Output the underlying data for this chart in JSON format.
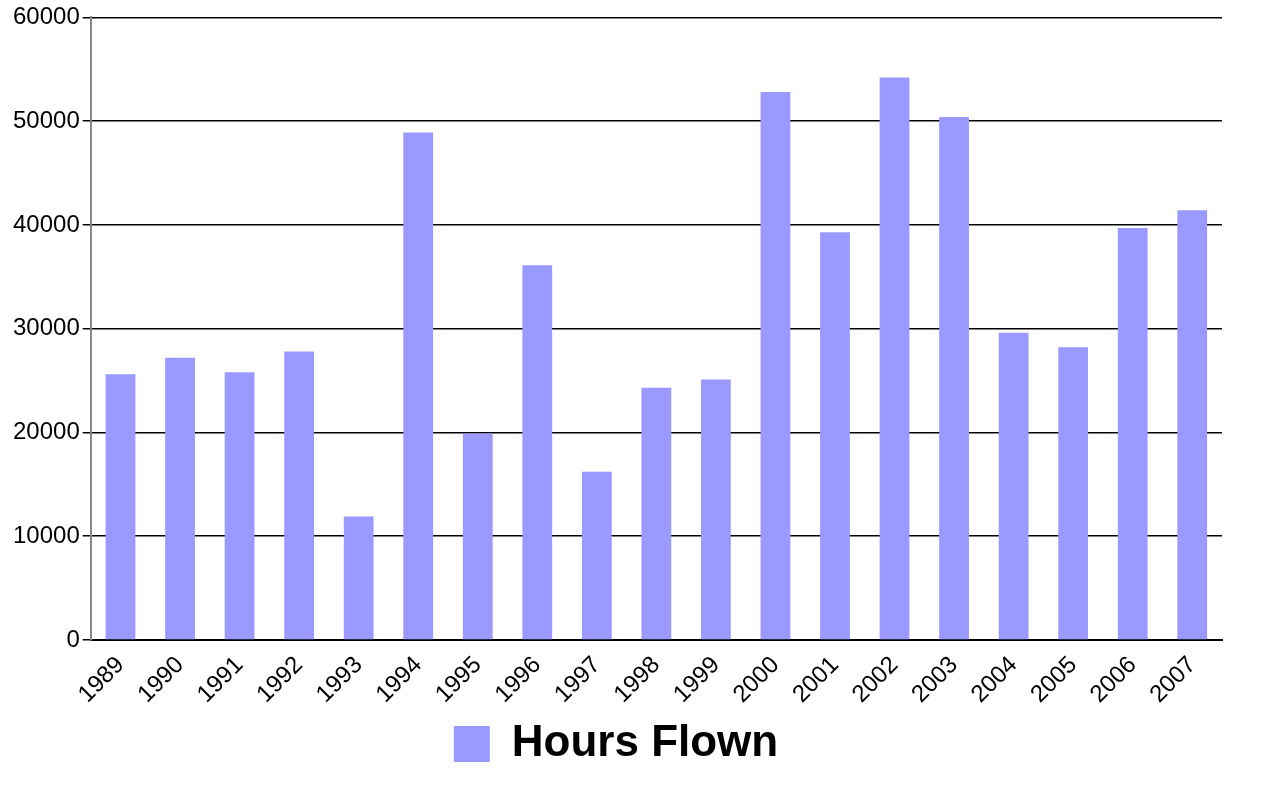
{
  "chart_data": {
    "type": "bar",
    "categories": [
      "1989",
      "1990",
      "1991",
      "1992",
      "1993",
      "1994",
      "1995",
      "1996",
      "1997",
      "1998",
      "1999",
      "2000",
      "2001",
      "2002",
      "2003",
      "2004",
      "2005",
      "2006",
      "2007"
    ],
    "series": [
      {
        "name": "Hours Flown",
        "color": "#9999ff",
        "values": [
          25600,
          27200,
          25800,
          27800,
          11900,
          48900,
          19900,
          36100,
          16200,
          24300,
          25100,
          52800,
          39300,
          54200,
          50400,
          29600,
          28200,
          39700,
          41400
        ]
      }
    ],
    "ylim": [
      0,
      60000
    ],
    "yticks": [
      0,
      10000,
      20000,
      30000,
      40000,
      50000,
      60000
    ],
    "grid": "y",
    "legend": "bottom"
  }
}
